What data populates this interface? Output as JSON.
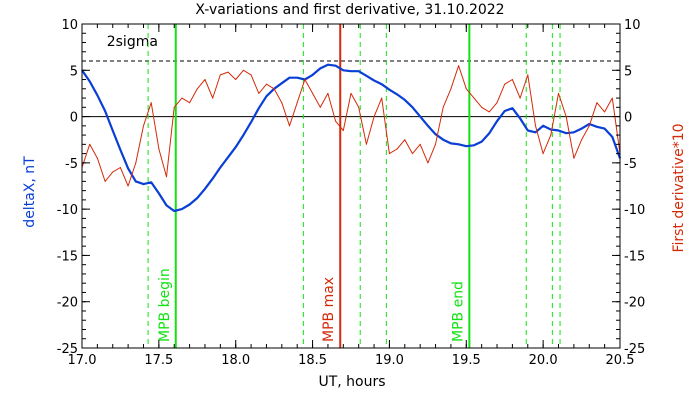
{
  "chart_data": {
    "type": "line",
    "title": "X-variations and first derivative, 31.10.2022",
    "xlabel": "UT, hours",
    "ylabel_left": "deltaX, nT",
    "ylabel_right": "First derivative*10",
    "xlim": [
      17.0,
      20.5
    ],
    "ylim": [
      -25,
      10
    ],
    "x_ticks": [
      "17.0",
      "17.5",
      "18.0",
      "18.5",
      "19.0",
      "19.5",
      "20.0",
      "20.5"
    ],
    "x_tick_values": [
      17.0,
      17.5,
      18.0,
      18.5,
      19.0,
      19.5,
      20.0,
      20.5
    ],
    "y_ticks": [
      "10",
      "5",
      "0",
      "-5",
      "-10",
      "-15",
      "-20",
      "-25"
    ],
    "y_tick_values": [
      10,
      5,
      0,
      -5,
      -10,
      -15,
      -20,
      -25
    ],
    "sigma_label": "2sigma",
    "sigma_level": 6,
    "colors": {
      "deltaX": "#0a3fd6",
      "derivative": "#d42a0a",
      "green": "#12e212",
      "red_marker": "#d42a0a",
      "axis": "#000000"
    },
    "series": [
      {
        "name": "deltaX",
        "color": "#0a3fd6",
        "x": [
          17.0,
          17.05,
          17.1,
          17.15,
          17.2,
          17.25,
          17.3,
          17.35,
          17.4,
          17.45,
          17.5,
          17.55,
          17.6,
          17.65,
          17.7,
          17.75,
          17.8,
          17.85,
          17.9,
          17.95,
          18.0,
          18.05,
          18.1,
          18.15,
          18.2,
          18.25,
          18.3,
          18.35,
          18.4,
          18.45,
          18.5,
          18.55,
          18.6,
          18.65,
          18.7,
          18.75,
          18.8,
          18.85,
          18.9,
          18.95,
          19.0,
          19.05,
          19.1,
          19.15,
          19.2,
          19.25,
          19.3,
          19.35,
          19.4,
          19.45,
          19.5,
          19.55,
          19.6,
          19.65,
          19.7,
          19.75,
          19.8,
          19.85,
          19.9,
          19.95,
          20.0,
          20.05,
          20.1,
          20.15,
          20.2,
          20.25,
          20.3,
          20.35,
          20.4,
          20.45,
          20.5
        ],
        "values": [
          5.0,
          3.8,
          2.3,
          0.6,
          -1.5,
          -3.6,
          -5.6,
          -7.0,
          -7.3,
          -7.1,
          -8.3,
          -9.6,
          -10.2,
          -10.0,
          -9.5,
          -8.8,
          -7.8,
          -6.7,
          -5.5,
          -4.4,
          -3.3,
          -2.0,
          -0.6,
          0.9,
          2.2,
          3.0,
          3.6,
          4.2,
          4.2,
          4.0,
          4.5,
          5.2,
          5.6,
          5.5,
          5.0,
          4.9,
          4.9,
          4.4,
          3.9,
          3.5,
          2.9,
          2.4,
          1.8,
          1.0,
          0.0,
          -1.0,
          -1.9,
          -2.5,
          -2.9,
          -3.0,
          -3.2,
          -3.1,
          -2.7,
          -1.8,
          -0.5,
          0.6,
          0.9,
          -0.2,
          -1.5,
          -1.7,
          -1.0,
          -1.4,
          -1.5,
          -1.8,
          -1.7,
          -1.3,
          -0.8,
          -1.1,
          -1.3,
          -2.2,
          -4.5
        ]
      },
      {
        "name": "First derivative*10",
        "color": "#d42a0a",
        "x": [
          17.0,
          17.05,
          17.1,
          17.15,
          17.2,
          17.25,
          17.3,
          17.35,
          17.4,
          17.45,
          17.5,
          17.55,
          17.6,
          17.65,
          17.7,
          17.75,
          17.8,
          17.85,
          17.9,
          17.95,
          18.0,
          18.05,
          18.1,
          18.15,
          18.2,
          18.25,
          18.3,
          18.35,
          18.4,
          18.45,
          18.5,
          18.55,
          18.6,
          18.65,
          18.7,
          18.75,
          18.8,
          18.85,
          18.9,
          18.95,
          19.0,
          19.05,
          19.1,
          19.15,
          19.2,
          19.25,
          19.3,
          19.35,
          19.4,
          19.45,
          19.5,
          19.55,
          19.6,
          19.65,
          19.7,
          19.75,
          19.8,
          19.85,
          19.9,
          19.95,
          20.0,
          20.05,
          20.1,
          20.15,
          20.2,
          20.25,
          20.3,
          20.35,
          20.4,
          20.45,
          20.5
        ],
        "values": [
          -5.5,
          -3.0,
          -4.5,
          -7.0,
          -6.0,
          -5.5,
          -7.5,
          -5.0,
          -1.0,
          1.5,
          -3.5,
          -6.5,
          1.0,
          2.0,
          1.5,
          3.0,
          4.0,
          2.0,
          4.5,
          4.8,
          4.0,
          5.0,
          4.5,
          2.5,
          3.5,
          3.0,
          1.5,
          -1.0,
          1.5,
          4.0,
          2.5,
          1.0,
          2.5,
          -0.5,
          -1.5,
          2.5,
          1.0,
          -3.0,
          0.0,
          2.0,
          -4.0,
          -3.5,
          -2.5,
          -4.0,
          -3.0,
          -5.0,
          -3.0,
          1.0,
          3.0,
          5.5,
          3.0,
          2.0,
          1.0,
          0.5,
          1.5,
          3.5,
          4.0,
          2.0,
          4.5,
          -1.0,
          -4.0,
          -2.0,
          2.5,
          0.0,
          -4.5,
          -2.5,
          -1.0,
          1.5,
          0.5,
          2.0,
          -4.0
        ]
      }
    ],
    "vertical_lines": [
      {
        "x": 17.43,
        "style": "dashed",
        "color": "#12e212"
      },
      {
        "x": 17.61,
        "style": "solid",
        "color": "#12e212",
        "label": "MPB begin"
      },
      {
        "x": 18.44,
        "style": "dashed",
        "color": "#12e212"
      },
      {
        "x": 18.68,
        "style": "solid",
        "color": "#d42a0a",
        "label": "MPB max"
      },
      {
        "x": 18.81,
        "style": "dashed",
        "color": "#12e212"
      },
      {
        "x": 18.98,
        "style": "dashed",
        "color": "#12e212"
      },
      {
        "x": 19.52,
        "style": "solid",
        "color": "#12e212",
        "label": "MPB end"
      },
      {
        "x": 19.89,
        "style": "dashed",
        "color": "#12e212"
      },
      {
        "x": 20.06,
        "style": "dashed",
        "color": "#12e212"
      },
      {
        "x": 20.11,
        "style": "dashed",
        "color": "#12e212"
      }
    ]
  }
}
